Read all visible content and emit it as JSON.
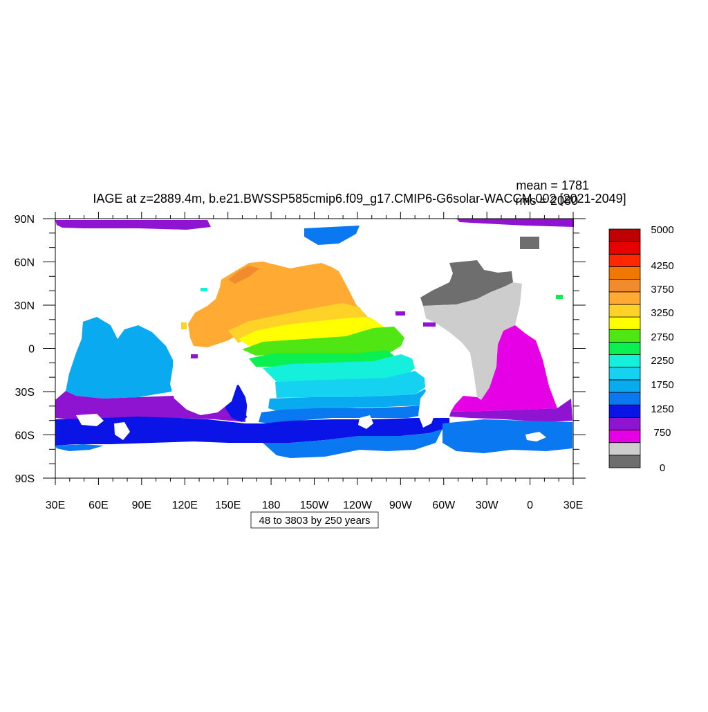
{
  "header": {
    "title": "IAGE at z=2889.4m, b.e21.BWSSP585cmip6.f09_g17.CMIP6-G6solar-WACCM.002 [2021-2049]",
    "mean_label": "mean = 1781",
    "rms_label": "rms = 2080"
  },
  "map": {
    "lat_ticks": [
      "90N",
      "60N",
      "30N",
      "0",
      "30S",
      "60S",
      "90S"
    ],
    "lon_ticks": [
      "30E",
      "60E",
      "90E",
      "120E",
      "150E",
      "180",
      "150W",
      "120W",
      "90W",
      "60W",
      "30W",
      "0",
      "30E"
    ],
    "contour_info": "48 to 3803 by 250 years"
  },
  "colorbar": {
    "colors": [
      "#6e6e6e",
      "#cdcdcd",
      "#e600e6",
      "#8f14d2",
      "#0a14e6",
      "#0a78f0",
      "#0aaaf0",
      "#14d2f0",
      "#14f0dc",
      "#0af050",
      "#50e614",
      "#ffff00",
      "#ffd228",
      "#ffaa32",
      "#f08c2d",
      "#f07800",
      "#ff2800",
      "#e60000",
      "#be0000"
    ],
    "labels": [
      "0",
      "750",
      "1250",
      "1750",
      "2250",
      "2750",
      "3250",
      "3750",
      "4250",
      "5000"
    ]
  },
  "land_color": "#ffffff"
}
